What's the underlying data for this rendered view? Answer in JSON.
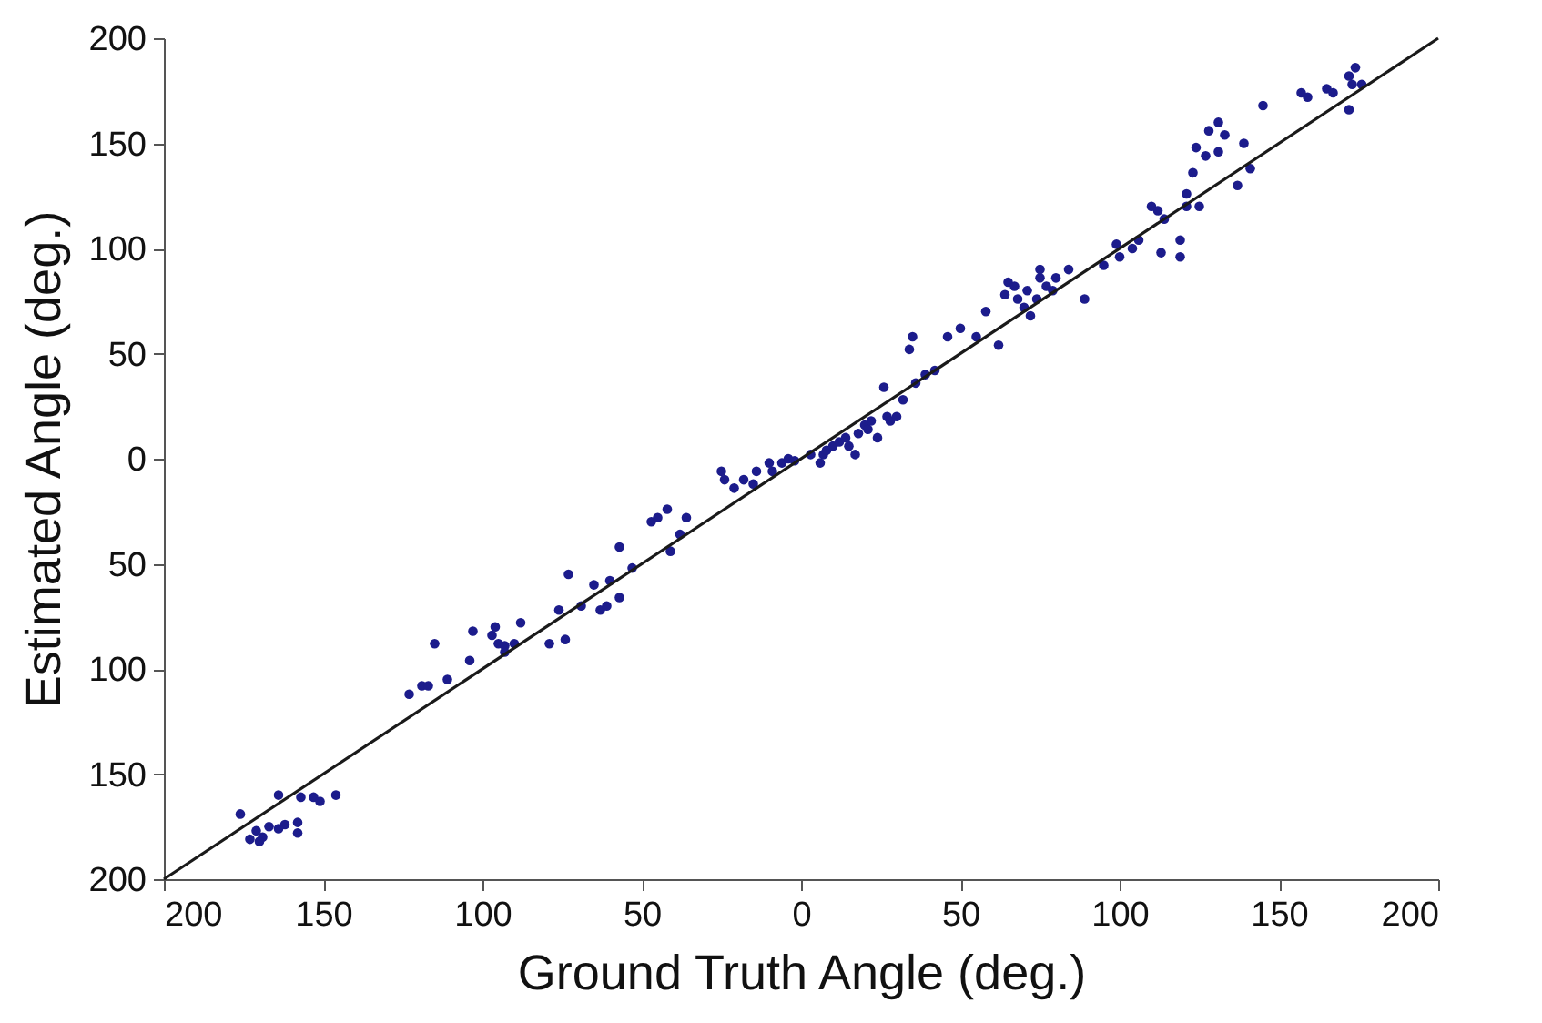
{
  "chart_data": {
    "type": "scatter",
    "xlabel": "Ground Truth Angle (deg.)",
    "ylabel": "Estimated Angle (deg.)",
    "xlim": [
      -200,
      200
    ],
    "ylim": [
      -200,
      200
    ],
    "xticks": [
      {
        "value": -200,
        "label": "200"
      },
      {
        "value": -150,
        "label": "150"
      },
      {
        "value": -100,
        "label": "100"
      },
      {
        "value": -50,
        "label": "50"
      },
      0,
      50,
      100,
      150,
      200
    ],
    "yticks": [
      {
        "value": -200,
        "label": "200"
      },
      {
        "value": -150,
        "label": "150"
      },
      {
        "value": -100,
        "label": "100"
      },
      {
        "value": -50,
        "label": "50"
      },
      0,
      50,
      100,
      150,
      200
    ],
    "grid": false,
    "legend": false,
    "series": [
      {
        "marker": "circle",
        "color": "#1c1c8c",
        "x": [
          -176,
          -173,
          -171,
          -169,
          -167,
          -164,
          -162,
          -158,
          -157,
          -158,
          -153,
          -151,
          -146,
          -164,
          -170,
          -123,
          -119,
          -117,
          -115,
          -111,
          -104,
          -103,
          -97,
          -96,
          -95,
          -93,
          -93,
          -90,
          -88,
          -79,
          -76,
          -74,
          -73,
          -69,
          -65,
          -63,
          -61,
          -60,
          -57,
          -57,
          -53,
          -47,
          -45,
          -42,
          -41,
          -38,
          -36,
          -25,
          -24,
          -21,
          -18,
          -15,
          -14,
          -10,
          -9,
          -6,
          -4,
          -2,
          3,
          6,
          7,
          8,
          10,
          12,
          14,
          15,
          17,
          18,
          20,
          21,
          22,
          24,
          26,
          27,
          28,
          30,
          32,
          34,
          35,
          36,
          39,
          42,
          46,
          50,
          55,
          58,
          62,
          64,
          65,
          67,
          68,
          70,
          71,
          72,
          74,
          75,
          75,
          77,
          79,
          80,
          84,
          89,
          95,
          99,
          100,
          104,
          106,
          110,
          112,
          113,
          114,
          119,
          119,
          121,
          121,
          123,
          124,
          125,
          127,
          128,
          131,
          131,
          133,
          137,
          139,
          141,
          145,
          157,
          159,
          165,
          167,
          172,
          173,
          174,
          176,
          172
        ],
        "values": [
          -169,
          -181,
          -177,
          -180,
          -175,
          -160,
          -174,
          -173,
          -161,
          -178,
          -161,
          -163,
          -160,
          -176,
          -182,
          -112,
          -108,
          -108,
          -88,
          -105,
          -96,
          -82,
          -84,
          -80,
          -88,
          -92,
          -89,
          -88,
          -78,
          -88,
          -72,
          -86,
          -55,
          -70,
          -60,
          -72,
          -70,
          -58,
          -66,
          -42,
          -52,
          -30,
          -28,
          -24,
          -44,
          -36,
          -28,
          -6,
          -10,
          -14,
          -10,
          -12,
          -6,
          -2,
          -6,
          -2,
          0,
          -1,
          2,
          -2,
          2,
          4,
          6,
          8,
          10,
          6,
          2,
          12,
          16,
          14,
          18,
          10,
          34,
          20,
          18,
          20,
          28,
          52,
          58,
          36,
          40,
          42,
          58,
          62,
          58,
          70,
          54,
          78,
          84,
          82,
          76,
          72,
          80,
          68,
          76,
          86,
          90,
          82,
          80,
          86,
          90,
          76,
          92,
          102,
          96,
          100,
          104,
          120,
          118,
          98,
          114,
          96,
          104,
          120,
          126,
          136,
          148,
          120,
          144,
          156,
          160,
          146,
          154,
          130,
          150,
          138,
          168,
          174,
          172,
          176,
          174,
          182,
          178,
          186,
          178,
          166
        ]
      },
      {
        "type": "line",
        "marker": "none",
        "line_style": "solid",
        "color": "#1a1a1a",
        "x": [
          -200,
          200
        ],
        "values": [
          -200,
          200
        ]
      }
    ]
  }
}
